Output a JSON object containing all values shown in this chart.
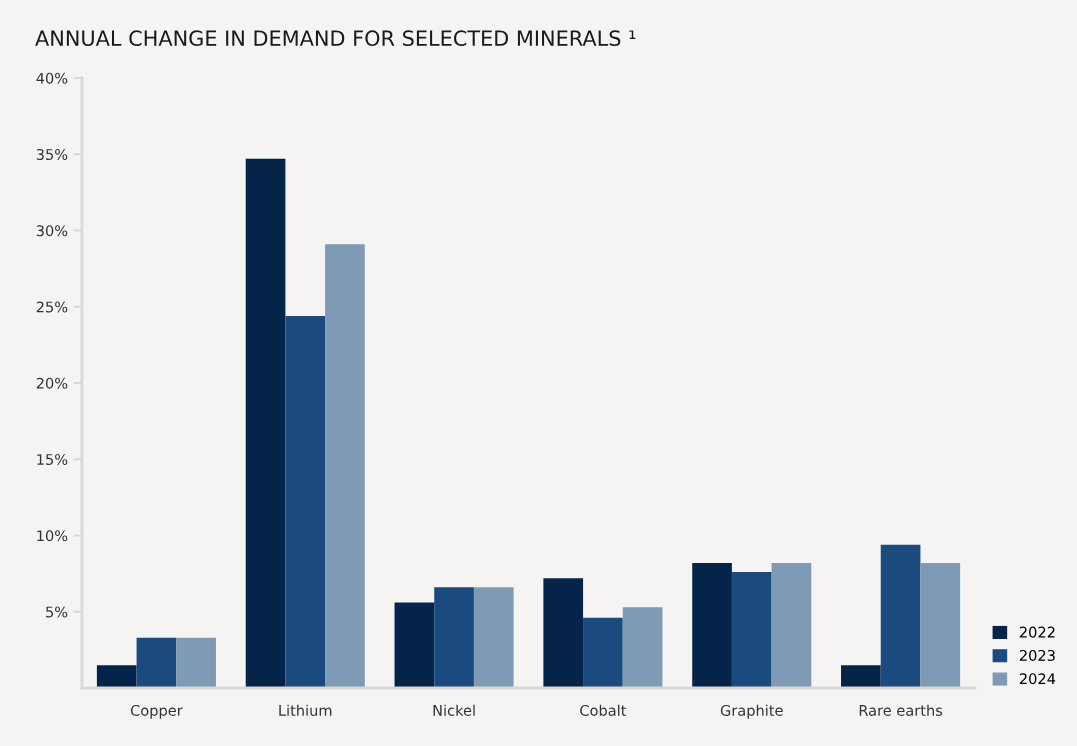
{
  "chart_data": {
    "type": "bar",
    "title": "ANNUAL CHANGE IN DEMAND FOR SELECTED MINERALS ¹",
    "categories": [
      "Copper",
      "Lithium",
      "Nickel",
      "Cobalt",
      "Graphite",
      "Rare earths"
    ],
    "series": [
      {
        "name": "2022",
        "color": "#05244a",
        "values": [
          1.5,
          34.7,
          5.6,
          7.2,
          8.2,
          1.5
        ]
      },
      {
        "name": "2023",
        "color": "#1a4a7e",
        "values": [
          3.3,
          24.4,
          6.6,
          4.6,
          7.6,
          9.4
        ]
      },
      {
        "name": "2024",
        "color": "#7f9ab5",
        "values": [
          3.3,
          29.1,
          6.6,
          5.3,
          8.2,
          8.2
        ]
      }
    ],
    "ylim": [
      0,
      40
    ],
    "yticks": [
      {
        "value": 5,
        "label": "5%"
      },
      {
        "value": 10,
        "label": "10%"
      },
      {
        "value": 15,
        "label": "15%"
      },
      {
        "value": 20,
        "label": "20%"
      },
      {
        "value": 25,
        "label": "25%"
      },
      {
        "value": 30,
        "label": "30%"
      },
      {
        "value": 35,
        "label": "35%"
      },
      {
        "value": 40,
        "label": "40%"
      }
    ],
    "grid": false,
    "legend": "bottom right"
  }
}
